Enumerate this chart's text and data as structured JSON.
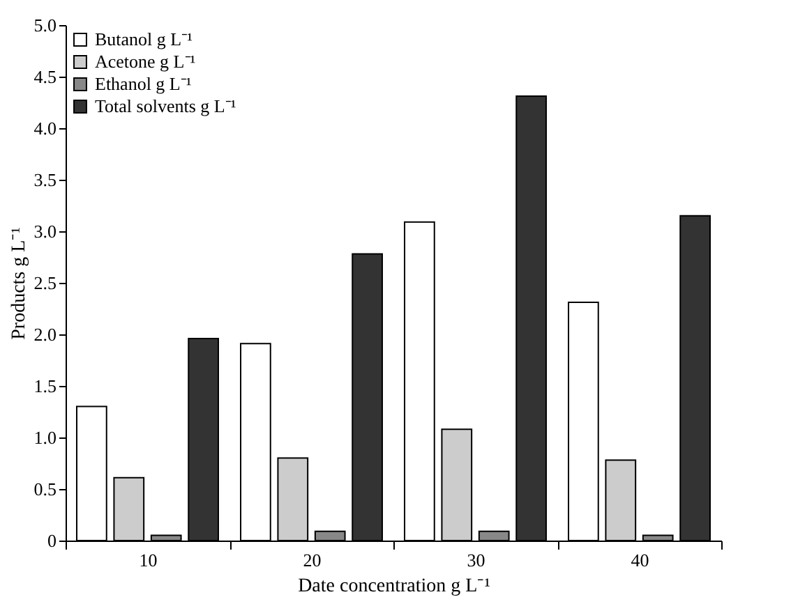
{
  "chart_data": {
    "type": "bar",
    "xlabel": "Date concentration g L⁻¹",
    "ylabel": "Products g L⁻¹",
    "categories": [
      "10",
      "20",
      "30",
      "40"
    ],
    "series": [
      {
        "name": "Butanol g L⁻¹",
        "color": "#ffffff",
        "values": [
          1.3,
          1.91,
          3.09,
          2.31
        ]
      },
      {
        "name": "Acetone g L⁻¹",
        "color": "#cccccc",
        "values": [
          0.61,
          0.8,
          1.08,
          0.78
        ]
      },
      {
        "name": "Ethanol g L⁻¹",
        "color": "#888888",
        "values": [
          0.05,
          0.09,
          0.09,
          0.05
        ]
      },
      {
        "name": "Total solvents g L⁻¹",
        "color": "#333333",
        "values": [
          1.96,
          2.78,
          4.31,
          3.15
        ]
      }
    ],
    "ylim": [
      0,
      5
    ],
    "yticks": [
      {
        "value": 0,
        "label": "0"
      },
      {
        "value": 0.5,
        "label": "0.5"
      },
      {
        "value": 1,
        "label": "1.0"
      },
      {
        "value": 1.5,
        "label": "1.5"
      },
      {
        "value": 2,
        "label": "2.0"
      },
      {
        "value": 2.5,
        "label": "2.5"
      },
      {
        "value": 3,
        "label": "3.0"
      },
      {
        "value": 3.5,
        "label": "3.5"
      },
      {
        "value": 4,
        "label": "4.0"
      },
      {
        "value": 4.5,
        "label": "4.5"
      },
      {
        "value": 5,
        "label": "5.0"
      }
    ],
    "grid": false,
    "legend": "top left"
  }
}
